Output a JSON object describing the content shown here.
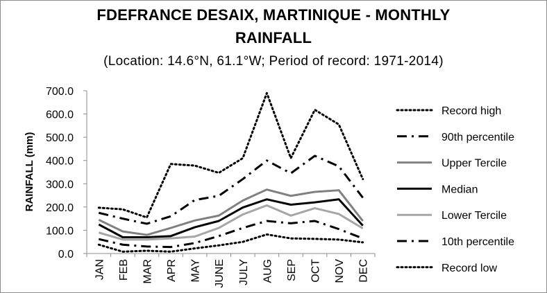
{
  "chart_data": {
    "type": "line",
    "title_line1": "FDEFRANCE DESAIX, MARTINIQUE - MONTHLY",
    "title_line2": "RAINFALL",
    "subtitle": "(Location: 14.6°N, 61.1°W; Period of record: 1971-2014)",
    "xlabel": "",
    "ylabel": "RAINFALL (mm)",
    "ylim": [
      0,
      700
    ],
    "yticks": [
      "0.0",
      "100.0",
      "200.0",
      "300.0",
      "400.0",
      "500.0",
      "600.0",
      "700.0"
    ],
    "categories": [
      "JAN",
      "FEB",
      "MAR",
      "APR",
      "MAY",
      "JUNE",
      "JULY",
      "AUG",
      "SEP",
      "OCT",
      "NOV",
      "DEC"
    ],
    "grid": false,
    "legend_position": "right",
    "series": [
      {
        "name": "Record high",
        "color": "#000000",
        "dash": "dotted",
        "values": [
          197,
          190,
          155,
          385,
          378,
          347,
          410,
          690,
          410,
          618,
          555,
          320
        ]
      },
      {
        "name": "90th percentile",
        "color": "#000000",
        "dash": "dashdot",
        "values": [
          175,
          150,
          128,
          160,
          230,
          248,
          320,
          400,
          345,
          420,
          375,
          240
        ]
      },
      {
        "name": "Upper Tercile",
        "color": "#808080",
        "dash": "solid",
        "values": [
          145,
          95,
          80,
          110,
          142,
          163,
          228,
          275,
          248,
          265,
          272,
          140
        ]
      },
      {
        "name": "Median",
        "color": "#000000",
        "dash": "solid",
        "values": [
          125,
          70,
          70,
          75,
          113,
          140,
          198,
          233,
          210,
          220,
          233,
          120
        ]
      },
      {
        "name": "Lower Tercile",
        "color": "#a6a6a6",
        "dash": "solid",
        "values": [
          90,
          60,
          60,
          65,
          73,
          110,
          168,
          207,
          163,
          195,
          170,
          108
        ]
      },
      {
        "name": "10th percentile",
        "color": "#000000",
        "dash": "dashdot",
        "values": [
          62,
          38,
          30,
          28,
          45,
          75,
          110,
          140,
          130,
          140,
          105,
          65
        ]
      },
      {
        "name": "Record low",
        "color": "#000000",
        "dash": "dotted",
        "values": [
          38,
          8,
          12,
          8,
          22,
          35,
          50,
          82,
          65,
          63,
          60,
          48
        ]
      }
    ]
  }
}
